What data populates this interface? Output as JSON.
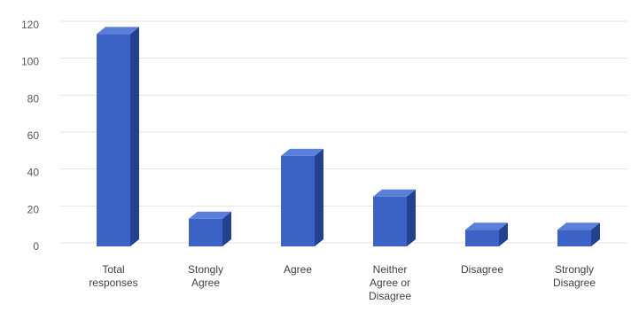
{
  "chart_data": {
    "type": "bar",
    "style": "3d-column",
    "categories": [
      [
        "Total",
        "responses"
      ],
      [
        "Stongly",
        "Agree"
      ],
      [
        "Agree"
      ],
      [
        "Neither",
        "Agree or",
        "Disagree"
      ],
      [
        "Disagree"
      ],
      [
        "Strongly",
        "Disagree"
      ]
    ],
    "values": [
      115,
      15,
      49,
      27,
      9,
      9
    ],
    "ylim": [
      0,
      120
    ],
    "yticks": [
      0,
      20,
      40,
      60,
      80,
      100,
      120
    ],
    "grid": true,
    "title": "",
    "xlabel": "",
    "ylabel": "",
    "colors": {
      "bar_front": "#3b62c4",
      "bar_side": "#22428f",
      "bar_top": "#5a7fd8",
      "grid": "#e3e3e3",
      "tick_text": "#595959",
      "category_text": "#404040"
    }
  }
}
